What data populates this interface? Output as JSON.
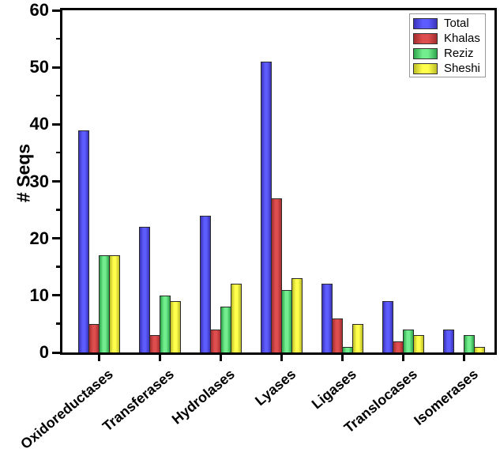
{
  "chart_data": {
    "type": "bar",
    "title": "",
    "xlabel": "",
    "ylabel": "# Seqs",
    "ylim": [
      0,
      60
    ],
    "ytick_major_interval": 10,
    "ytick_minor_interval": 5,
    "grid": false,
    "frame": true,
    "legend_position": "top-right-inside",
    "axis_color": "#000000",
    "bar_border_color": "#2a2a2a",
    "categories": [
      "Oxidoreductases",
      "Transferases",
      "Hydrolases",
      "Lyases",
      "Ligases",
      "Translocases",
      "Isomerases"
    ],
    "series": [
      {
        "name": "Total",
        "color": "#4a44e8",
        "color_center": "#5d5cff",
        "color_edge": "#3a33b8",
        "values": [
          39,
          22,
          24,
          51,
          12,
          9,
          4
        ]
      },
      {
        "name": "Khalas",
        "color": "#cc3b3b",
        "color_center": "#df4e4e",
        "color_edge": "#a32e2e",
        "values": [
          5,
          3,
          4,
          27,
          6,
          2,
          0
        ]
      },
      {
        "name": "Reziz",
        "color": "#44cc66",
        "color_center": "#72ee8e",
        "color_edge": "#2fa64c",
        "values": [
          17,
          10,
          8,
          11,
          1,
          4,
          3
        ]
      },
      {
        "name": "Sheshi",
        "color": "#e8e838",
        "color_center": "#ffff4c",
        "color_edge": "#bcbc28",
        "values": [
          17,
          9,
          12,
          13,
          5,
          3,
          1
        ]
      }
    ]
  }
}
